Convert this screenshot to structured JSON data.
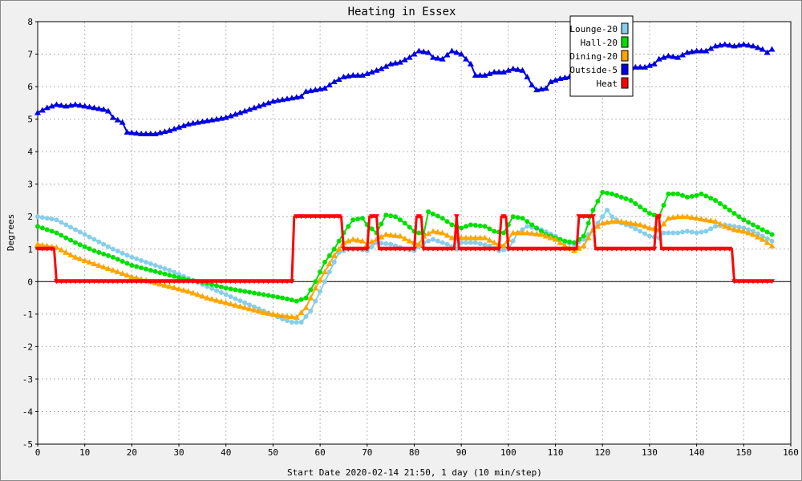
{
  "colors": {
    "background": "#f0f0f0",
    "plot_background": "#ffffff",
    "grid": "#b4b4b4",
    "lounge": "#87ceeb",
    "hall": "#00e000",
    "dining": "#ffa500",
    "outside": "#0000e0",
    "heat": "#ff0000"
  },
  "chart_data": {
    "type": "line",
    "title": "Heating in Essex",
    "xlabel": "Start Date 2020-02-14 21:50, 1 day (10 min/step)",
    "ylabel": "Degrees",
    "xlim": [
      0,
      160
    ],
    "ylim": [
      -5,
      8
    ],
    "x_ticks": [
      0,
      10,
      20,
      30,
      40,
      50,
      60,
      70,
      80,
      90,
      100,
      110,
      120,
      130,
      140,
      150,
      160
    ],
    "y_ticks": [
      -5,
      -4,
      -3,
      -2,
      -1,
      0,
      1,
      2,
      3,
      4,
      5,
      6,
      7,
      8
    ],
    "grid": true,
    "legend_position": "top-right",
    "zero_line": true,
    "series": [
      {
        "name": "Lounge-20",
        "color_key": "lounge",
        "marker": "circle",
        "points": [
          [
            0,
            2.0
          ],
          [
            4,
            1.9
          ],
          [
            8,
            1.6
          ],
          [
            12,
            1.3
          ],
          [
            16,
            1.0
          ],
          [
            20,
            0.75
          ],
          [
            24,
            0.55
          ],
          [
            28,
            0.35
          ],
          [
            32,
            0.1
          ],
          [
            36,
            -0.15
          ],
          [
            40,
            -0.4
          ],
          [
            44,
            -0.65
          ],
          [
            48,
            -0.9
          ],
          [
            52,
            -1.15
          ],
          [
            54,
            -1.25
          ],
          [
            56,
            -1.25
          ],
          [
            58,
            -0.9
          ],
          [
            60,
            -0.3
          ],
          [
            62,
            0.3
          ],
          [
            64,
            0.9
          ],
          [
            66,
            1.0
          ],
          [
            68,
            1.0
          ],
          [
            70,
            0.95
          ],
          [
            72,
            1.2
          ],
          [
            75,
            1.15
          ],
          [
            78,
            1.0
          ],
          [
            80,
            0.95
          ],
          [
            82,
            1.2
          ],
          [
            84,
            1.3
          ],
          [
            87,
            1.15
          ],
          [
            89,
            1.0
          ],
          [
            90,
            1.2
          ],
          [
            93,
            1.2
          ],
          [
            96,
            1.1
          ],
          [
            98,
            0.95
          ],
          [
            100,
            1.0
          ],
          [
            102,
            1.5
          ],
          [
            104,
            1.7
          ],
          [
            107,
            1.6
          ],
          [
            110,
            1.4
          ],
          [
            112,
            1.2
          ],
          [
            114,
            1.15
          ],
          [
            116,
            1.3
          ],
          [
            118,
            1.6
          ],
          [
            121,
            2.2
          ],
          [
            122,
            2.0
          ],
          [
            124,
            1.8
          ],
          [
            126,
            1.7
          ],
          [
            128,
            1.55
          ],
          [
            130,
            1.4
          ],
          [
            132,
            1.35
          ],
          [
            133,
            1.5
          ],
          [
            136,
            1.5
          ],
          [
            138,
            1.55
          ],
          [
            140,
            1.5
          ],
          [
            142,
            1.55
          ],
          [
            144,
            1.7
          ],
          [
            146,
            1.75
          ],
          [
            148,
            1.7
          ],
          [
            150,
            1.65
          ],
          [
            152,
            1.55
          ],
          [
            154,
            1.4
          ],
          [
            156,
            1.25
          ]
        ]
      },
      {
        "name": "Hall-20",
        "color_key": "hall",
        "marker": "circle",
        "points": [
          [
            0,
            1.7
          ],
          [
            4,
            1.5
          ],
          [
            8,
            1.2
          ],
          [
            12,
            0.95
          ],
          [
            16,
            0.75
          ],
          [
            20,
            0.5
          ],
          [
            24,
            0.35
          ],
          [
            28,
            0.2
          ],
          [
            32,
            0.05
          ],
          [
            36,
            -0.05
          ],
          [
            40,
            -0.2
          ],
          [
            44,
            -0.3
          ],
          [
            48,
            -0.4
          ],
          [
            52,
            -0.5
          ],
          [
            55,
            -0.6
          ],
          [
            57,
            -0.5
          ],
          [
            59,
            0.0
          ],
          [
            61,
            0.6
          ],
          [
            63,
            1.0
          ],
          [
            65,
            1.5
          ],
          [
            67,
            1.9
          ],
          [
            69,
            1.95
          ],
          [
            70,
            1.75
          ],
          [
            72,
            1.5
          ],
          [
            74,
            2.05
          ],
          [
            76,
            2.0
          ],
          [
            78,
            1.8
          ],
          [
            80,
            1.55
          ],
          [
            82,
            1.45
          ],
          [
            83,
            2.15
          ],
          [
            86,
            1.95
          ],
          [
            88,
            1.75
          ],
          [
            90,
            1.65
          ],
          [
            92,
            1.75
          ],
          [
            95,
            1.7
          ],
          [
            97,
            1.55
          ],
          [
            99,
            1.5
          ],
          [
            101,
            2.0
          ],
          [
            103,
            1.95
          ],
          [
            106,
            1.65
          ],
          [
            108,
            1.45
          ],
          [
            110,
            1.35
          ],
          [
            112,
            1.25
          ],
          [
            114,
            1.2
          ],
          [
            116,
            1.4
          ],
          [
            118,
            2.2
          ],
          [
            120,
            2.75
          ],
          [
            122,
            2.7
          ],
          [
            124,
            2.6
          ],
          [
            126,
            2.5
          ],
          [
            128,
            2.3
          ],
          [
            130,
            2.1
          ],
          [
            132,
            2.0
          ],
          [
            134,
            2.7
          ],
          [
            136,
            2.7
          ],
          [
            138,
            2.6
          ],
          [
            140,
            2.65
          ],
          [
            141,
            2.7
          ],
          [
            144,
            2.5
          ],
          [
            146,
            2.3
          ],
          [
            148,
            2.1
          ],
          [
            150,
            1.9
          ],
          [
            152,
            1.75
          ],
          [
            154,
            1.6
          ],
          [
            156,
            1.45
          ]
        ]
      },
      {
        "name": "Dining-20",
        "color_key": "dining",
        "marker": "triangle",
        "points": [
          [
            0,
            1.15
          ],
          [
            4,
            1.05
          ],
          [
            8,
            0.75
          ],
          [
            12,
            0.55
          ],
          [
            16,
            0.35
          ],
          [
            20,
            0.15
          ],
          [
            24,
            0.0
          ],
          [
            28,
            -0.15
          ],
          [
            32,
            -0.3
          ],
          [
            36,
            -0.5
          ],
          [
            40,
            -0.65
          ],
          [
            44,
            -0.8
          ],
          [
            48,
            -0.95
          ],
          [
            52,
            -1.05
          ],
          [
            55,
            -1.1
          ],
          [
            57,
            -0.8
          ],
          [
            59,
            -0.2
          ],
          [
            61,
            0.3
          ],
          [
            63,
            0.8
          ],
          [
            65,
            1.2
          ],
          [
            67,
            1.3
          ],
          [
            69,
            1.25
          ],
          [
            70,
            1.15
          ],
          [
            72,
            1.3
          ],
          [
            74,
            1.45
          ],
          [
            77,
            1.4
          ],
          [
            79,
            1.25
          ],
          [
            81,
            1.15
          ],
          [
            82,
            1.4
          ],
          [
            84,
            1.55
          ],
          [
            86,
            1.5
          ],
          [
            88,
            1.35
          ],
          [
            90,
            1.35
          ],
          [
            92,
            1.35
          ],
          [
            95,
            1.35
          ],
          [
            97,
            1.2
          ],
          [
            99,
            1.1
          ],
          [
            101,
            1.5
          ],
          [
            104,
            1.5
          ],
          [
            107,
            1.45
          ],
          [
            110,
            1.3
          ],
          [
            112,
            1.1
          ],
          [
            114,
            0.95
          ],
          [
            116,
            1.1
          ],
          [
            118,
            1.6
          ],
          [
            120,
            1.8
          ],
          [
            122,
            1.85
          ],
          [
            124,
            1.85
          ],
          [
            126,
            1.8
          ],
          [
            128,
            1.75
          ],
          [
            130,
            1.65
          ],
          [
            132,
            1.6
          ],
          [
            134,
            1.95
          ],
          [
            136,
            2.0
          ],
          [
            138,
            2.0
          ],
          [
            140,
            1.95
          ],
          [
            142,
            1.9
          ],
          [
            144,
            1.85
          ],
          [
            146,
            1.7
          ],
          [
            148,
            1.6
          ],
          [
            150,
            1.55
          ],
          [
            152,
            1.45
          ],
          [
            154,
            1.3
          ],
          [
            156,
            1.1
          ]
        ]
      },
      {
        "name": "Outside-5",
        "color_key": "outside",
        "marker": "triangle",
        "points": [
          [
            0,
            5.2
          ],
          [
            2,
            5.35
          ],
          [
            4,
            5.45
          ],
          [
            6,
            5.4
          ],
          [
            8,
            5.45
          ],
          [
            10,
            5.4
          ],
          [
            12,
            5.35
          ],
          [
            14,
            5.3
          ],
          [
            15,
            5.25
          ],
          [
            16,
            5.05
          ],
          [
            18,
            4.9
          ],
          [
            19,
            4.6
          ],
          [
            22,
            4.55
          ],
          [
            25,
            4.55
          ],
          [
            28,
            4.65
          ],
          [
            30,
            4.75
          ],
          [
            32,
            4.85
          ],
          [
            34,
            4.9
          ],
          [
            36,
            4.95
          ],
          [
            38,
            5.0
          ],
          [
            40,
            5.05
          ],
          [
            42,
            5.15
          ],
          [
            44,
            5.25
          ],
          [
            46,
            5.35
          ],
          [
            48,
            5.45
          ],
          [
            50,
            5.55
          ],
          [
            52,
            5.6
          ],
          [
            54,
            5.65
          ],
          [
            56,
            5.7
          ],
          [
            57,
            5.85
          ],
          [
            59,
            5.9
          ],
          [
            61,
            5.95
          ],
          [
            63,
            6.15
          ],
          [
            65,
            6.3
          ],
          [
            67,
            6.35
          ],
          [
            69,
            6.35
          ],
          [
            71,
            6.45
          ],
          [
            73,
            6.55
          ],
          [
            75,
            6.7
          ],
          [
            77,
            6.75
          ],
          [
            79,
            6.9
          ],
          [
            81,
            7.1
          ],
          [
            83,
            7.05
          ],
          [
            84,
            6.9
          ],
          [
            86,
            6.85
          ],
          [
            88,
            7.1
          ],
          [
            90,
            7.0
          ],
          [
            92,
            6.7
          ],
          [
            93,
            6.35
          ],
          [
            95,
            6.35
          ],
          [
            97,
            6.45
          ],
          [
            99,
            6.45
          ],
          [
            101,
            6.55
          ],
          [
            103,
            6.5
          ],
          [
            104,
            6.3
          ],
          [
            105,
            6.05
          ],
          [
            106,
            5.9
          ],
          [
            108,
            5.95
          ],
          [
            109,
            6.15
          ],
          [
            111,
            6.25
          ],
          [
            113,
            6.3
          ],
          [
            115,
            6.4
          ],
          [
            117,
            6.5
          ],
          [
            119,
            6.6
          ],
          [
            121,
            6.65
          ],
          [
            123,
            6.6
          ],
          [
            125,
            6.55
          ],
          [
            127,
            6.6
          ],
          [
            129,
            6.6
          ],
          [
            131,
            6.7
          ],
          [
            132,
            6.85
          ],
          [
            134,
            6.95
          ],
          [
            136,
            6.9
          ],
          [
            138,
            7.05
          ],
          [
            140,
            7.1
          ],
          [
            142,
            7.1
          ],
          [
            144,
            7.25
          ],
          [
            146,
            7.3
          ],
          [
            148,
            7.25
          ],
          [
            150,
            7.3
          ],
          [
            152,
            7.25
          ],
          [
            154,
            7.15
          ],
          [
            155,
            7.05
          ],
          [
            156,
            7.15
          ]
        ]
      },
      {
        "name": "Heat",
        "color_key": "heat",
        "marker": "triangle-down",
        "points": [
          [
            0,
            1
          ],
          [
            3.5,
            1
          ],
          [
            4,
            0
          ],
          [
            54,
            0
          ],
          [
            54.5,
            2
          ],
          [
            64.5,
            2
          ],
          [
            65,
            1
          ],
          [
            70,
            1
          ],
          [
            70.5,
            2
          ],
          [
            72,
            2
          ],
          [
            72.5,
            1
          ],
          [
            80,
            1
          ],
          [
            80.5,
            2
          ],
          [
            81.5,
            2
          ],
          [
            82,
            1
          ],
          [
            88.5,
            1
          ],
          [
            89,
            2
          ],
          [
            89.5,
            1
          ],
          [
            98,
            1
          ],
          [
            98.5,
            2
          ],
          [
            99.5,
            2
          ],
          [
            100,
            1
          ],
          [
            114.5,
            1
          ],
          [
            115,
            2
          ],
          [
            118,
            2
          ],
          [
            118.5,
            1
          ],
          [
            131,
            1
          ],
          [
            131.5,
            2
          ],
          [
            132,
            2
          ],
          [
            132.5,
            1
          ],
          [
            147.5,
            1
          ],
          [
            148,
            0
          ],
          [
            156,
            0
          ]
        ]
      }
    ]
  }
}
